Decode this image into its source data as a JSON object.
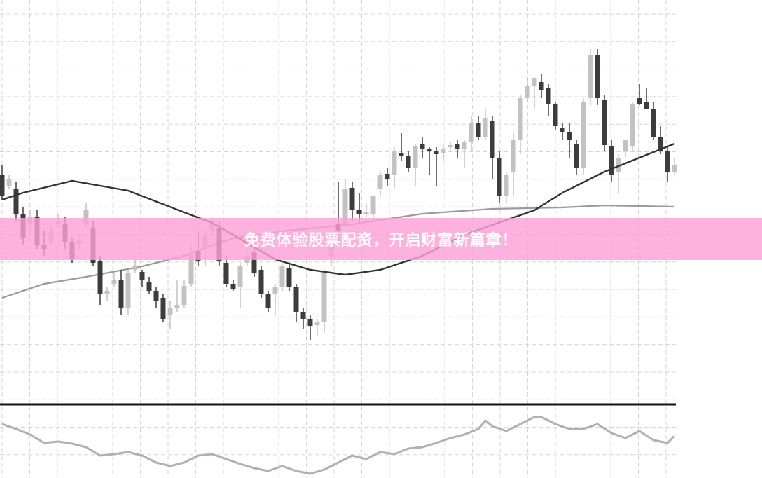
{
  "banner": {
    "text": "免费体验股票配资，开启财富新篇章！",
    "color": "#fcaadb"
  },
  "chart_data": {
    "type": "candlestick",
    "title": "",
    "xlabel": "",
    "ylabel": "",
    "grid": true,
    "colors": {
      "bear": "#3c3c3c",
      "bull": "#c2c2c2",
      "ma_fast": "#333333",
      "ma_slow": "#9a9a9a",
      "oscillator": "#b0b0b0"
    },
    "candles_ohlc": [
      [
        35.0,
        36.5,
        31.5,
        32.0
      ],
      [
        33.5,
        35.0,
        33.0,
        34.5
      ],
      [
        33.0,
        34.0,
        28.5,
        29.5
      ],
      [
        29.5,
        30.5,
        25.0,
        26.0
      ],
      [
        28.0,
        30.0,
        27.0,
        29.0
      ],
      [
        29.0,
        30.0,
        24.5,
        25.0
      ],
      [
        25.0,
        27.0,
        23.5,
        24.5
      ],
      [
        25.5,
        28.0,
        25.0,
        27.0
      ],
      [
        28.0,
        29.5,
        27.5,
        28.5
      ],
      [
        28.0,
        29.0,
        24.5,
        25.5
      ],
      [
        25.5,
        26.0,
        22.5,
        23.0
      ],
      [
        25.2,
        26.5,
        24.5,
        25.8
      ],
      [
        28.0,
        31.0,
        27.5,
        30.0
      ],
      [
        27.5,
        28.5,
        22.0,
        22.5
      ],
      [
        22.8,
        23.5,
        16.5,
        18.0
      ],
      [
        18.0,
        19.0,
        17.0,
        18.5
      ],
      [
        19.5,
        21.0,
        19.0,
        20.0
      ],
      [
        20.0,
        21.5,
        15.0,
        16.0
      ],
      [
        16.0,
        21.5,
        15.0,
        21.0
      ],
      [
        21.5,
        23.0,
        21.0,
        22.0
      ],
      [
        21.2,
        21.5,
        19.0,
        20.0
      ],
      [
        19.8,
        20.5,
        18.0,
        18.5
      ],
      [
        18.5,
        19.0,
        16.0,
        17.0
      ],
      [
        17.5,
        18.0,
        14.0,
        14.5
      ],
      [
        15.0,
        17.0,
        13.0,
        16.0
      ],
      [
        16.0,
        20.0,
        15.5,
        16.5
      ],
      [
        16.5,
        20.0,
        16.0,
        19.2
      ],
      [
        19.5,
        25.0,
        19.0,
        24.0
      ],
      [
        24.2,
        27.0,
        22.0,
        22.8
      ],
      [
        24.5,
        27.5,
        22.0,
        26.5
      ],
      [
        27.0,
        29.0,
        26.5,
        28.0
      ],
      [
        27.5,
        28.5,
        22.0,
        22.8
      ],
      [
        22.5,
        23.5,
        19.0,
        19.5
      ],
      [
        19.5,
        20.0,
        18.5,
        18.7
      ],
      [
        19.0,
        22.5,
        16.0,
        22.0
      ],
      [
        22.5,
        24.5,
        22.0,
        23.5
      ],
      [
        24.0,
        25.0,
        20.5,
        21.0
      ],
      [
        21.5,
        22.0,
        17.5,
        18.0
      ],
      [
        18.0,
        18.5,
        15.5,
        16.0
      ],
      [
        18.0,
        19.5,
        15.0,
        19.0
      ],
      [
        19.0,
        22.5,
        18.5,
        22.0
      ],
      [
        21.7,
        22.5,
        18.5,
        19.0
      ],
      [
        19.0,
        19.5,
        14.0,
        15.5
      ],
      [
        15.5,
        16.0,
        13.0,
        14.5
      ],
      [
        14.5,
        15.0,
        11.5,
        13.5
      ],
      [
        13.7,
        14.5,
        12.0,
        14.0
      ],
      [
        14.0,
        21.5,
        12.5,
        21.0
      ],
      [
        23.5,
        27.0,
        22.0,
        25.0
      ],
      [
        28.0,
        34.0,
        25.5,
        27.0
      ],
      [
        28.0,
        34.5,
        27.5,
        33.0
      ],
      [
        33.2,
        34.0,
        28.5,
        30.0
      ],
      [
        30.0,
        32.5,
        28.0,
        29.5
      ],
      [
        29.5,
        31.0,
        29.0,
        29.7
      ],
      [
        29.5,
        32.0,
        28.5,
        32.0
      ],
      [
        33.0,
        35.5,
        32.0,
        35.0
      ],
      [
        35.2,
        36.0,
        33.5,
        34.5
      ],
      [
        35.0,
        39.0,
        33.0,
        38.5
      ],
      [
        38.2,
        41.0,
        37.0,
        37.8
      ],
      [
        37.8,
        38.5,
        35.5,
        36.0
      ],
      [
        36.0,
        39.5,
        33.5,
        39.2
      ],
      [
        39.5,
        40.5,
        37.5,
        38.7
      ],
      [
        38.8,
        39.0,
        35.0,
        38.5
      ],
      [
        38.5,
        39.0,
        33.5,
        38.0
      ],
      [
        38.2,
        39.5,
        37.0,
        38.7
      ],
      [
        39.0,
        39.8,
        38.5,
        39.3
      ],
      [
        39.5,
        40.0,
        37.5,
        38.7
      ],
      [
        38.8,
        40.0,
        36.0,
        39.7
      ],
      [
        39.7,
        43.5,
        38.5,
        42.5
      ],
      [
        42.5,
        43.5,
        40.0,
        40.4
      ],
      [
        40.5,
        44.5,
        40.0,
        43.2
      ],
      [
        42.8,
        43.5,
        34.5,
        37.5
      ],
      [
        37.5,
        38.5,
        31.0,
        32.0
      ],
      [
        32.0,
        35.5,
        31.0,
        35.0
      ],
      [
        35.5,
        41.0,
        32.0,
        40.0
      ],
      [
        40.0,
        46.5,
        38.0,
        46.0
      ],
      [
        46.0,
        49.0,
        45.5,
        47.8
      ],
      [
        47.8,
        48.8,
        44.5,
        48.8
      ],
      [
        48.3,
        49.5,
        46.0,
        47.2
      ],
      [
        47.5,
        48.0,
        43.5,
        45.2
      ],
      [
        45.2,
        45.5,
        41.5,
        42.0
      ],
      [
        41.8,
        42.5,
        40.0,
        41.2
      ],
      [
        41.2,
        42.5,
        37.5,
        40.0
      ],
      [
        39.5,
        40.0,
        35.0,
        36.0
      ],
      [
        36.0,
        46.0,
        35.0,
        45.5
      ],
      [
        46.0,
        53.0,
        45.0,
        52.2
      ],
      [
        52.2,
        53.0,
        45.0,
        46.0
      ],
      [
        45.8,
        46.5,
        38.5,
        39.3
      ],
      [
        39.2,
        40.0,
        34.0,
        35.0
      ],
      [
        35.5,
        38.0,
        32.5,
        37.5
      ],
      [
        38.5,
        40.0,
        37.5,
        40.0
      ],
      [
        39.2,
        45.5,
        38.5,
        45.2
      ],
      [
        46.0,
        48.0,
        45.0,
        45.2
      ],
      [
        45.5,
        47.5,
        44.5,
        44.5
      ],
      [
        44.5,
        45.5,
        40.0,
        40.5
      ],
      [
        40.5,
        42.0,
        38.0,
        38.5
      ],
      [
        38.5,
        39.0,
        34.0,
        35.5
      ],
      [
        35.5,
        37.5,
        35.0,
        36.5
      ]
    ],
    "ma_fast": [
      [
        0,
        31.5
      ],
      [
        3,
        32.5
      ],
      [
        10,
        34.2
      ],
      [
        18,
        32.8
      ],
      [
        26,
        29.7
      ],
      [
        30,
        28.2
      ],
      [
        39,
        23.0
      ],
      [
        44,
        21.5
      ],
      [
        49,
        20.8
      ],
      [
        54,
        21.5
      ],
      [
        60,
        23.5
      ],
      [
        66,
        26.5
      ],
      [
        76,
        30.0
      ],
      [
        80,
        32.5
      ],
      [
        86,
        35.5
      ],
      [
        91,
        37.5
      ],
      [
        96,
        39.5
      ]
    ],
    "ma_slow": [
      [
        0,
        17.5
      ],
      [
        6,
        19.5
      ],
      [
        12,
        20.5
      ],
      [
        20,
        22.0
      ],
      [
        26,
        23.5
      ],
      [
        30,
        25.0
      ],
      [
        33,
        26.0
      ],
      [
        40,
        27.0
      ],
      [
        50,
        28.0
      ],
      [
        60,
        29.5
      ],
      [
        70,
        30.2
      ],
      [
        80,
        30.4
      ],
      [
        86,
        30.7
      ],
      [
        96,
        30.5
      ]
    ],
    "oscillator": [
      [
        0,
        75
      ],
      [
        2,
        68
      ],
      [
        4,
        60
      ],
      [
        6,
        48
      ],
      [
        8,
        50
      ],
      [
        10,
        47
      ],
      [
        12,
        42
      ],
      [
        14,
        30
      ],
      [
        16,
        32
      ],
      [
        18,
        35
      ],
      [
        20,
        30
      ],
      [
        22,
        20
      ],
      [
        24,
        15
      ],
      [
        26,
        20
      ],
      [
        28,
        30
      ],
      [
        30,
        32
      ],
      [
        32,
        25
      ],
      [
        34,
        18
      ],
      [
        36,
        12
      ],
      [
        38,
        8
      ],
      [
        40,
        15
      ],
      [
        42,
        8
      ],
      [
        44,
        4
      ],
      [
        46,
        10
      ],
      [
        48,
        20
      ],
      [
        50,
        30
      ],
      [
        52,
        25
      ],
      [
        54,
        35
      ],
      [
        56,
        32
      ],
      [
        58,
        40
      ],
      [
        60,
        42
      ],
      [
        62,
        48
      ],
      [
        64,
        55
      ],
      [
        66,
        60
      ],
      [
        68,
        68
      ],
      [
        69,
        80
      ],
      [
        70,
        72
      ],
      [
        72,
        65
      ],
      [
        74,
        75
      ],
      [
        76,
        85
      ],
      [
        77,
        85
      ],
      [
        79,
        75
      ],
      [
        81,
        68
      ],
      [
        83,
        68
      ],
      [
        85,
        75
      ],
      [
        87,
        62
      ],
      [
        89,
        55
      ],
      [
        91,
        65
      ],
      [
        93,
        52
      ],
      [
        95,
        48
      ],
      [
        96,
        58
      ]
    ]
  }
}
